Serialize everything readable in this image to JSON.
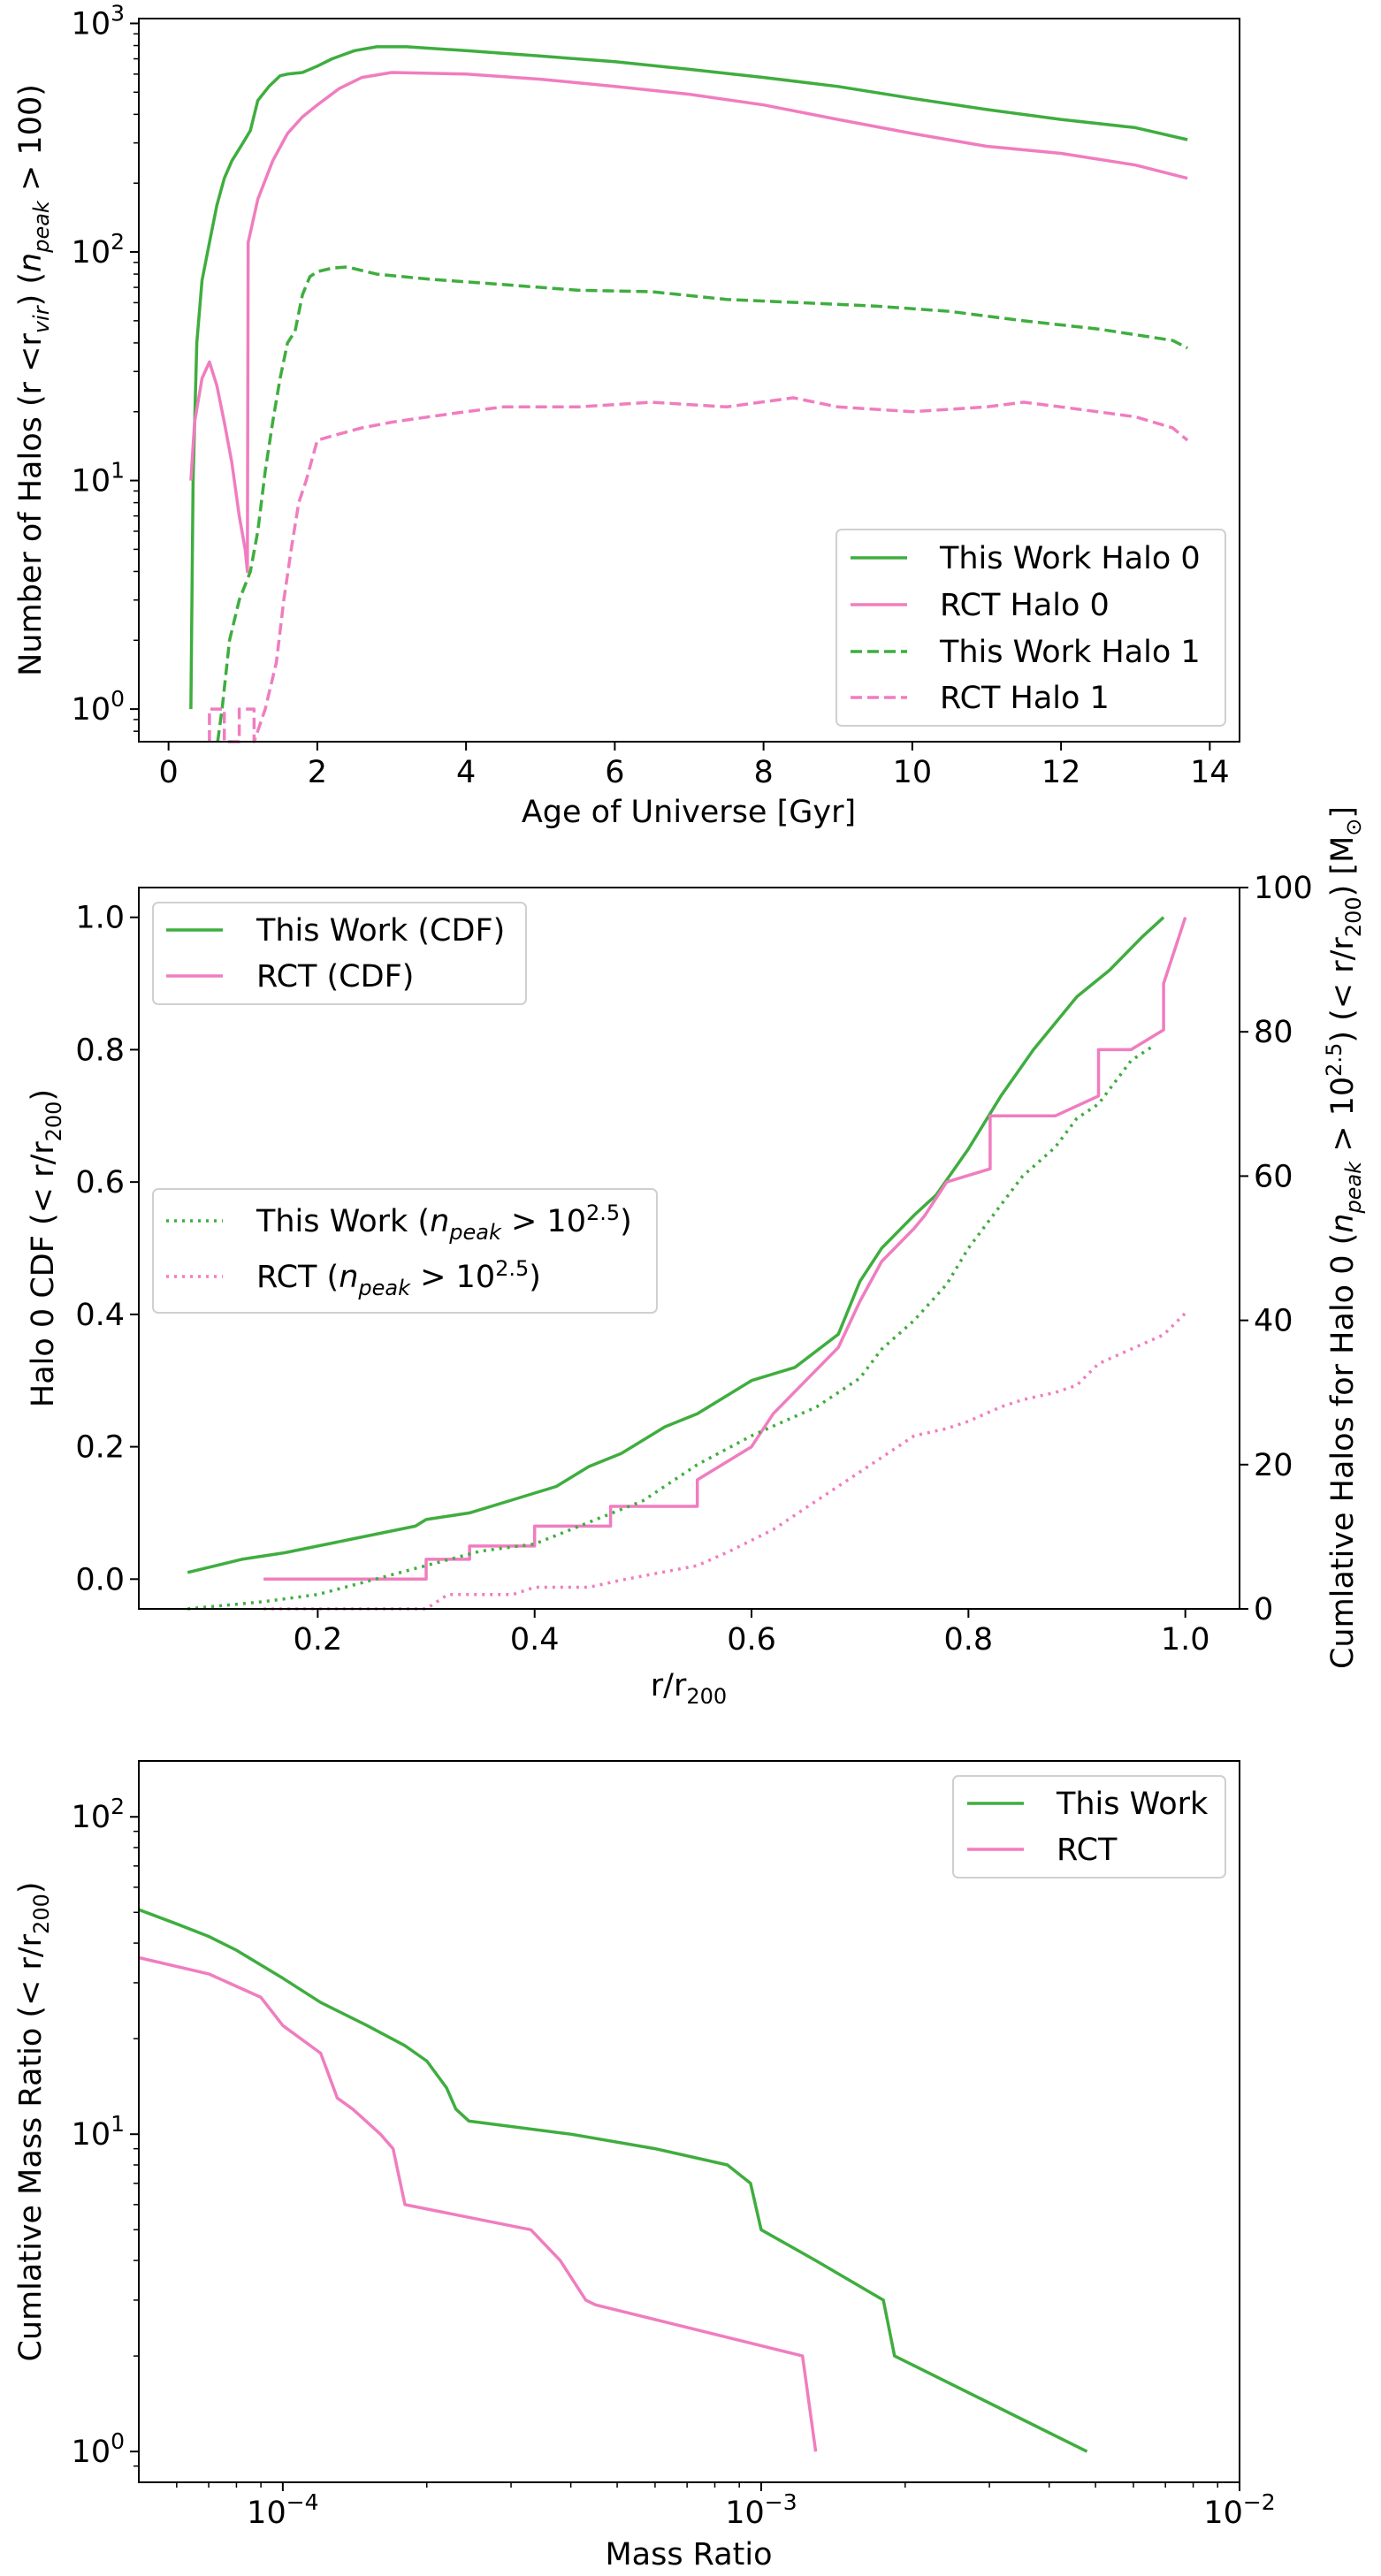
{
  "colors": {
    "green": "#3fad3f",
    "pink": "#f07dbf",
    "frame": "#000000"
  },
  "chart_data": [
    {
      "type": "line",
      "scale": "log-y",
      "xlabel": "Age of Universe [Gyr]",
      "ylabel_parts": [
        "Number of Halos (r <r",
        "vir",
        ") (",
        "n",
        "peak",
        " > 100)"
      ],
      "xlim": [
        -0.4,
        14.4
      ],
      "ylim": [
        0.72,
        1050
      ],
      "xticks": [
        0,
        2,
        4,
        6,
        8,
        10,
        12,
        14
      ],
      "xtick_labels": [
        "0",
        "2",
        "4",
        "6",
        "8",
        "10",
        "12",
        "14"
      ],
      "yticks": [
        1,
        10,
        100,
        1000
      ],
      "ytick_labels": [
        {
          "base": "10",
          "exp": "0"
        },
        {
          "base": "10",
          "exp": "1"
        },
        {
          "base": "10",
          "exp": "2"
        },
        {
          "base": "10",
          "exp": "3"
        }
      ],
      "legend": {
        "position": "lower-right",
        "entries": [
          "This Work Halo 0",
          "RCT Halo 0",
          "This Work Halo 1",
          "RCT Halo 1"
        ]
      },
      "series": [
        {
          "name": "This Work Halo 0",
          "color": "green",
          "style": "solid",
          "x": [
            0.3,
            0.33,
            0.38,
            0.45,
            0.55,
            0.65,
            0.75,
            0.85,
            1.0,
            1.1,
            1.2,
            1.35,
            1.5,
            1.6,
            1.8,
            2.0,
            2.2,
            2.5,
            2.8,
            3.2,
            4,
            5,
            6,
            7,
            8,
            9,
            10,
            11,
            12,
            13,
            13.7
          ],
          "y": [
            1,
            10,
            40,
            75,
            110,
            160,
            210,
            250,
            300,
            340,
            460,
            530,
            590,
            600,
            610,
            650,
            700,
            760,
            790,
            790,
            760,
            720,
            680,
            630,
            580,
            530,
            470,
            420,
            380,
            350,
            310
          ]
        },
        {
          "name": "RCT Halo 0",
          "color": "pink",
          "style": "solid",
          "x": [
            0.3,
            0.35,
            0.45,
            0.55,
            0.65,
            0.75,
            0.85,
            0.95,
            1.03,
            1.06,
            1.07,
            1.2,
            1.4,
            1.6,
            1.8,
            2.0,
            2.3,
            2.6,
            3.0,
            4,
            5,
            6,
            7,
            8,
            9,
            10,
            11,
            12,
            13,
            13.7
          ],
          "y": [
            10,
            18,
            28,
            33,
            26,
            18,
            12,
            7,
            5,
            4,
            110,
            170,
            250,
            330,
            390,
            440,
            520,
            580,
            610,
            600,
            570,
            530,
            490,
            440,
            380,
            330,
            290,
            270,
            240,
            210
          ]
        },
        {
          "name": "This Work Halo 1",
          "color": "green",
          "style": "dashed",
          "x": [
            0.66,
            0.72,
            0.72,
            0.82,
            0.82,
            0.95,
            0.95,
            1.1,
            1.2,
            1.3,
            1.4,
            1.5,
            1.6,
            1.7,
            1.8,
            1.9,
            2.0,
            2.2,
            2.4,
            2.8,
            3.5,
            4.5,
            5.5,
            6.5,
            7.5,
            8.5,
            9.5,
            10.5,
            11.5,
            12.5,
            13.5,
            13.7
          ],
          "y": [
            0.72,
            1,
            1,
            2,
            2,
            3,
            3,
            4,
            6,
            11,
            18,
            28,
            40,
            45,
            65,
            78,
            82,
            85,
            86,
            80,
            76,
            72,
            68,
            67,
            62,
            60,
            58,
            55,
            50,
            46,
            41,
            38
          ]
        },
        {
          "name": "RCT Halo 1",
          "color": "pink",
          "style": "dashed",
          "x": [
            0.55,
            0.55,
            0.75,
            0.75,
            0.95,
            0.95,
            1.15,
            1.15,
            1.3,
            1.45,
            1.55,
            1.65,
            1.75,
            1.85,
            2.0,
            2.3,
            2.6,
            3.0,
            3.5,
            4.0,
            4.5,
            5.5,
            6.5,
            7.5,
            8.4,
            9.0,
            10,
            11,
            11.5,
            12,
            13,
            13.5,
            13.7
          ],
          "y": [
            0.72,
            1,
            1,
            0.72,
            0.72,
            1,
            1,
            0.72,
            1,
            1.6,
            3,
            5,
            8,
            10,
            15,
            16,
            17,
            18,
            19,
            20,
            21,
            21,
            22,
            21,
            23,
            21,
            20,
            21,
            22,
            21,
            19,
            17,
            15
          ]
        }
      ]
    },
    {
      "type": "line",
      "scale": "linear-dual-y",
      "xlabel_parts": [
        "r/r",
        "200"
      ],
      "ylabel_parts": [
        "Halo 0 CDF (< r/r",
        "200",
        ")"
      ],
      "y2label_parts": [
        "Cumlative Halos for Halo 0 (",
        "n",
        "peak",
        " > 10",
        "2.5",
        ") (< r/r",
        "200",
        ") [M",
        "⊙",
        "]"
      ],
      "xlim": [
        0.035,
        1.05
      ],
      "ylim": [
        -0.045,
        1.045
      ],
      "y2lim": [
        0,
        100
      ],
      "xticks": [
        0.2,
        0.4,
        0.6,
        0.8,
        1.0
      ],
      "xtick_labels": [
        "0.2",
        "0.4",
        "0.6",
        "0.8",
        "1.0"
      ],
      "yticks": [
        0,
        0.2,
        0.4,
        0.6,
        0.8,
        1.0
      ],
      "ytick_labels": [
        "0.0",
        "0.2",
        "0.4",
        "0.6",
        "0.8",
        "1.0"
      ],
      "y2ticks": [
        0,
        20,
        40,
        60,
        80,
        100
      ],
      "y2tick_labels": [
        "0",
        "20",
        "40",
        "60",
        "80",
        "100"
      ],
      "legend_top": {
        "position": "upper-left",
        "entries": [
          "This Work (CDF)",
          "RCT (CDF)"
        ]
      },
      "legend_mid": {
        "position": "center-left",
        "entries": [
          [
            "This Work (",
            "n",
            "peak",
            " > 10",
            "2.5",
            ")"
          ],
          [
            "RCT (",
            "n",
            "peak",
            " > 10",
            "2.5",
            ")"
          ]
        ]
      },
      "series": [
        {
          "name": "This Work (CDF)",
          "color": "green",
          "style": "solid",
          "axis": "left",
          "x": [
            0.08,
            0.13,
            0.17,
            0.2,
            0.23,
            0.26,
            0.29,
            0.3,
            0.34,
            0.38,
            0.42,
            0.45,
            0.48,
            0.52,
            0.55,
            0.58,
            0.6,
            0.64,
            0.68,
            0.7,
            0.72,
            0.75,
            0.77,
            0.8,
            0.83,
            0.86,
            0.9,
            0.93,
            0.96,
            0.98
          ],
          "y": [
            0.01,
            0.03,
            0.04,
            0.05,
            0.06,
            0.07,
            0.08,
            0.09,
            0.1,
            0.12,
            0.14,
            0.17,
            0.19,
            0.23,
            0.25,
            0.28,
            0.3,
            0.32,
            0.37,
            0.45,
            0.5,
            0.55,
            0.58,
            0.65,
            0.73,
            0.8,
            0.88,
            0.92,
            0.97,
            1.0
          ]
        },
        {
          "name": "RCT (CDF)",
          "color": "pink",
          "style": "solid",
          "axis": "left",
          "x": [
            0.15,
            0.3,
            0.3,
            0.34,
            0.34,
            0.4,
            0.4,
            0.47,
            0.47,
            0.55,
            0.55,
            0.6,
            0.62,
            0.65,
            0.68,
            0.7,
            0.72,
            0.75,
            0.76,
            0.78,
            0.82,
            0.82,
            0.85,
            0.88,
            0.92,
            0.92,
            0.95,
            0.98,
            0.98,
            1.0
          ],
          "y": [
            0.0,
            0.0,
            0.03,
            0.03,
            0.05,
            0.05,
            0.08,
            0.08,
            0.11,
            0.11,
            0.15,
            0.2,
            0.25,
            0.3,
            0.35,
            0.42,
            0.48,
            0.53,
            0.55,
            0.6,
            0.62,
            0.7,
            0.7,
            0.7,
            0.73,
            0.8,
            0.8,
            0.83,
            0.9,
            1.0
          ]
        },
        {
          "name": "This Work (n_peak > 10^2.5)",
          "color": "green",
          "style": "dotted",
          "axis": "right",
          "x": [
            0.08,
            0.15,
            0.2,
            0.25,
            0.3,
            0.35,
            0.4,
            0.45,
            0.5,
            0.55,
            0.6,
            0.63,
            0.66,
            0.7,
            0.72,
            0.75,
            0.78,
            0.8,
            0.83,
            0.85,
            0.88,
            0.9,
            0.92,
            0.95,
            0.97
          ],
          "y": [
            0,
            1,
            2,
            4,
            6,
            8,
            9,
            12,
            15,
            20,
            24,
            26,
            28,
            32,
            36,
            40,
            45,
            50,
            56,
            60,
            64,
            68,
            70,
            76,
            78
          ]
        },
        {
          "name": "RCT (n_peak > 10^2.5)",
          "color": "pink",
          "style": "dotted",
          "axis": "right",
          "x": [
            0.15,
            0.3,
            0.32,
            0.38,
            0.4,
            0.45,
            0.48,
            0.55,
            0.58,
            0.62,
            0.67,
            0.7,
            0.73,
            0.75,
            0.78,
            0.8,
            0.83,
            0.85,
            0.88,
            0.9,
            0.92,
            0.95,
            0.98,
            1.0
          ],
          "y": [
            0,
            0,
            2,
            2,
            3,
            3,
            4,
            6,
            8,
            11,
            16,
            19,
            22,
            24,
            25,
            26,
            28,
            29,
            30,
            31,
            34,
            36,
            38,
            41
          ]
        }
      ]
    },
    {
      "type": "line",
      "scale": "log-log",
      "xlabel": "Mass Ratio",
      "ylabel_parts": [
        "Cumlative Mass Ratio (< r/r",
        "200",
        ")"
      ],
      "xlim": [
        5e-05,
        0.01
      ],
      "ylim": [
        0.8,
        150
      ],
      "xticks": [
        0.0001,
        0.001,
        0.01
      ],
      "xtick_labels": [
        {
          "base": "10",
          "exp": "−4"
        },
        {
          "base": "10",
          "exp": "−3"
        },
        {
          "base": "10",
          "exp": "−2"
        }
      ],
      "yticks": [
        1,
        10,
        100
      ],
      "ytick_labels": [
        {
          "base": "10",
          "exp": "0"
        },
        {
          "base": "10",
          "exp": "1"
        },
        {
          "base": "10",
          "exp": "2"
        }
      ],
      "legend": {
        "position": "upper-right",
        "entries": [
          "This Work",
          "RCT"
        ]
      },
      "series": [
        {
          "name": "This Work",
          "color": "green",
          "style": "solid",
          "x": [
            5e-05,
            6e-05,
            7e-05,
            8e-05,
            0.0001,
            0.00012,
            0.00015,
            0.00018,
            0.0002,
            0.00022,
            0.00023,
            0.000245,
            0.0004,
            0.0006,
            0.00085,
            0.00095,
            0.001,
            0.0013,
            0.0018,
            0.0019,
            0.0048
          ],
          "y": [
            51,
            46,
            42,
            38,
            31,
            26,
            22,
            19,
            17,
            14,
            12,
            11,
            10,
            9,
            8,
            7,
            5,
            4,
            3,
            2,
            1
          ]
        },
        {
          "name": "RCT",
          "color": "pink",
          "style": "solid",
          "x": [
            5e-05,
            7e-05,
            9e-05,
            0.0001,
            0.00012,
            0.00013,
            0.00014,
            0.00016,
            0.00017,
            0.00018,
            0.00033,
            0.00038,
            0.00043,
            0.00045,
            0.00122,
            0.0013
          ],
          "y": [
            36,
            32,
            27,
            22,
            18,
            13,
            12,
            10,
            9,
            6,
            5,
            4,
            3,
            2.9,
            2,
            1
          ]
        }
      ]
    }
  ]
}
